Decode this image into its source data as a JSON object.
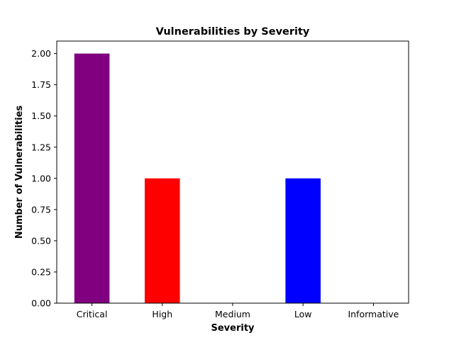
{
  "chart_data": {
    "type": "bar",
    "title": "Vulnerabilities by Severity",
    "xlabel": "Severity",
    "ylabel": "Number of Vulnerabilities",
    "categories": [
      "Critical",
      "High",
      "Medium",
      "Low",
      "Informative"
    ],
    "values": [
      2,
      1,
      0,
      1,
      0
    ],
    "colors": [
      "#800080",
      "#ff0000",
      "#ffa500",
      "#0000ff",
      "#808080"
    ],
    "ylim": [
      0,
      2.1
    ],
    "yticks": [
      "0.00",
      "0.25",
      "0.50",
      "0.75",
      "1.00",
      "1.25",
      "1.50",
      "1.75",
      "2.00"
    ],
    "grid": false,
    "legend": "none"
  }
}
